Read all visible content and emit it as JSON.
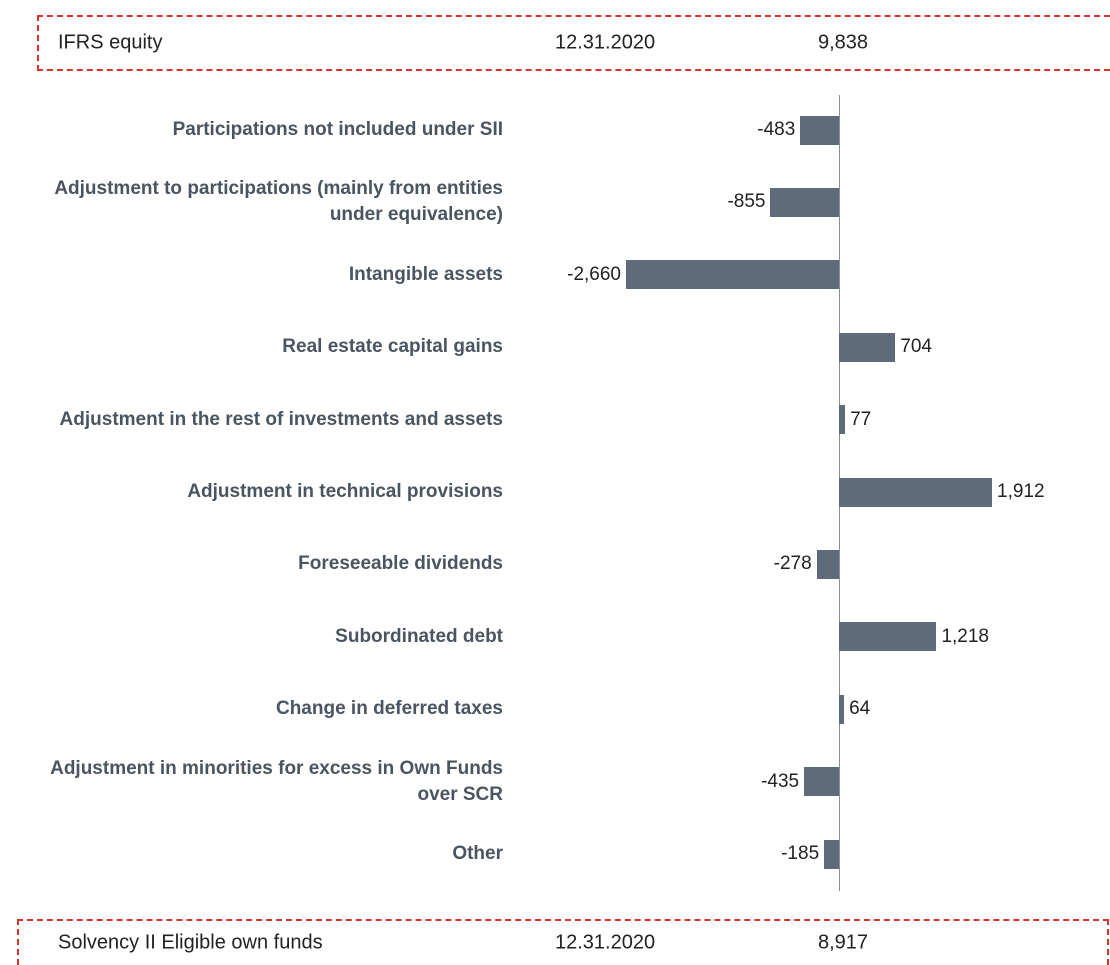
{
  "header": {
    "label": "IFRS equity",
    "date": "12.31.2020",
    "value": "9,838"
  },
  "footer": {
    "label": "Solvency II Eligible own funds",
    "date": "12.31.2020",
    "value": "8,917"
  },
  "chart_data": {
    "type": "bar",
    "orientation": "horizontal",
    "color": "#5f6b78",
    "categories": [
      "Participations not included under SII",
      "Adjustment to participations (mainly from entities under equivalence)",
      "Intangible assets",
      "Real estate capital gains",
      "Adjustment in the rest of investments and assets",
      "Adjustment in technical provisions",
      "Foreseeable dividends",
      "Subordinated debt",
      "Change in deferred taxes",
      "Adjustment in minorities for excess in Own Funds over SCR",
      "Other"
    ],
    "values": [
      -483,
      -855,
      -2660,
      704,
      77,
      1912,
      -278,
      1218,
      64,
      -435,
      -185
    ],
    "value_labels": [
      "-483",
      "-855",
      "-2,660",
      "704",
      "77",
      "1,912",
      "-278",
      "1,218",
      "64",
      "-435",
      "-185"
    ],
    "xlim": [
      -2660,
      1912
    ]
  }
}
